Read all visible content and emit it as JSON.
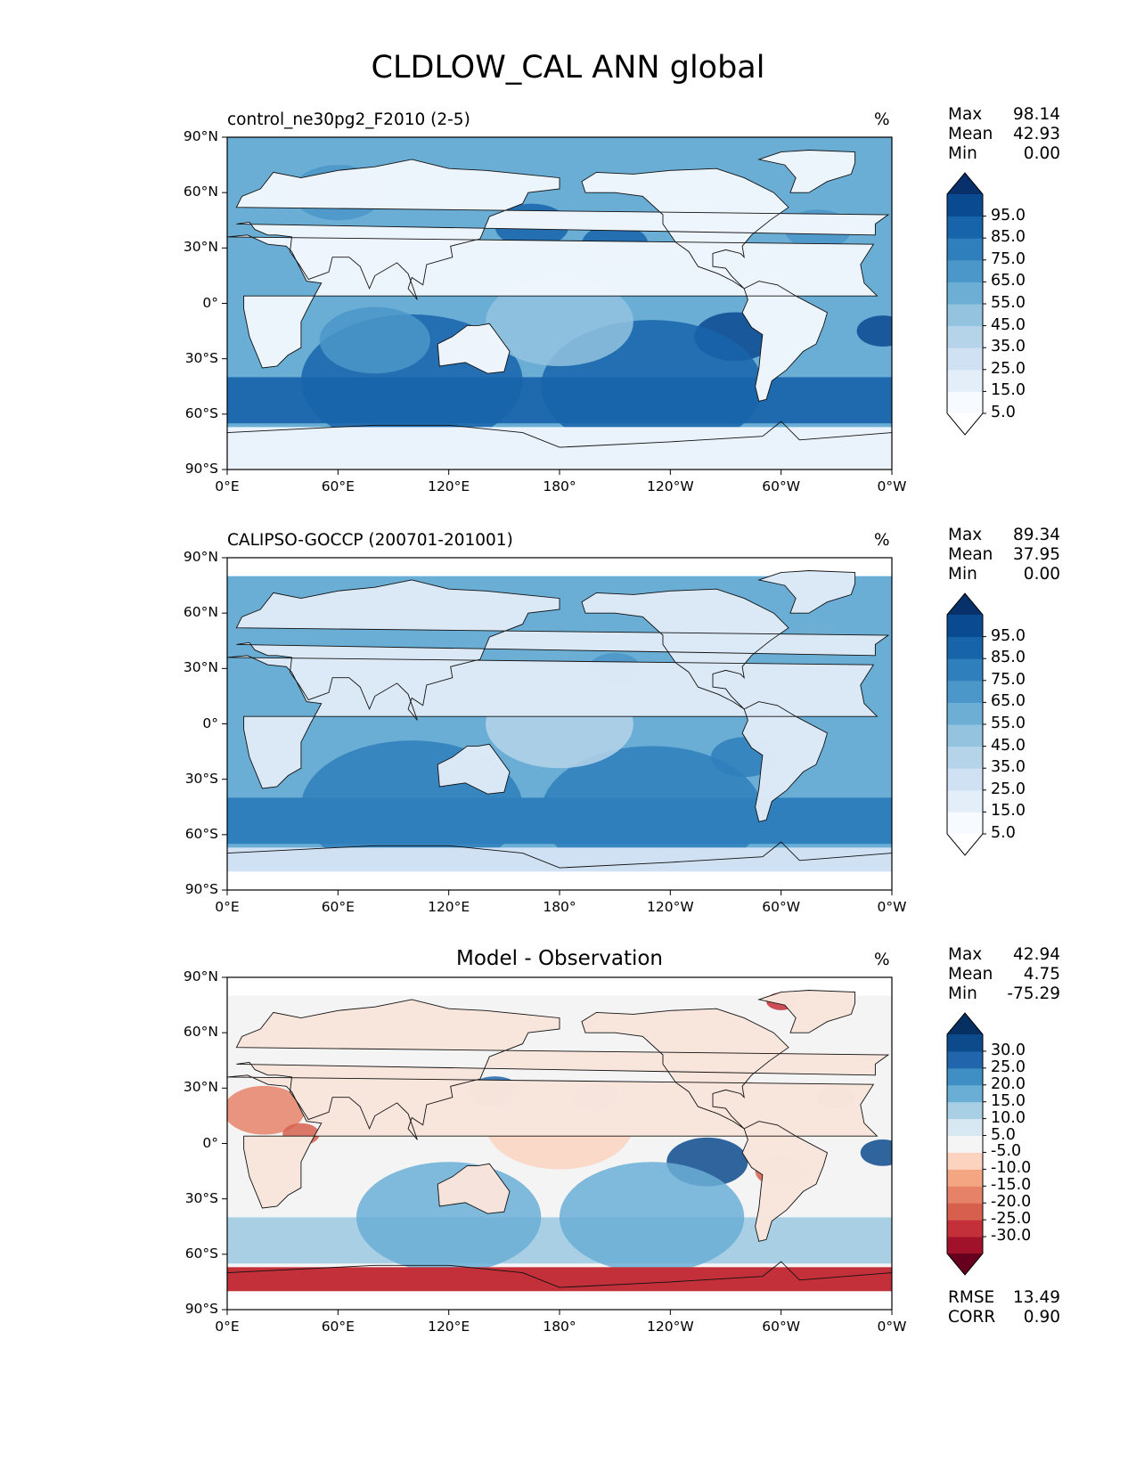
{
  "figure": {
    "title": "CLDLOW_CAL ANN global"
  },
  "axes": {
    "lat_ticks": [
      "90°N",
      "60°N",
      "30°N",
      "0°",
      "30°S",
      "60°S",
      "90°S"
    ],
    "lon_ticks": [
      "0°E",
      "60°E",
      "120°E",
      "180°",
      "120°W",
      "60°W",
      "0°W"
    ]
  },
  "panels": [
    {
      "id": "model",
      "title_left": "control_ne30pg2_F2010 (2-5)",
      "title_center": "",
      "units": "%",
      "stats": [
        {
          "label": "Max",
          "value": "98.14"
        },
        {
          "label": "Mean",
          "value": "42.93"
        },
        {
          "label": "Min",
          "value": "0.00"
        }
      ],
      "colorbar": {
        "labels": [
          "95.0",
          "85.0",
          "75.0",
          "65.0",
          "55.0",
          "45.0",
          "35.0",
          "25.0",
          "15.0",
          "5.0"
        ],
        "colors": [
          "#f7fbff",
          "#e3eef9",
          "#cfe1f2",
          "#b5d4e9",
          "#93c3df",
          "#6daed5",
          "#4b97c9",
          "#2f7fbc",
          "#1864aa",
          "#0a4a90"
        ],
        "over_color": "#08306b",
        "under_color": "#ffffff"
      },
      "rmse": null
    },
    {
      "id": "obs",
      "title_left": "CALIPSO-GOCCP (200701-201001)",
      "title_center": "",
      "units": "%",
      "stats": [
        {
          "label": "Max",
          "value": "89.34"
        },
        {
          "label": "Mean",
          "value": "37.95"
        },
        {
          "label": "Min",
          "value": "0.00"
        }
      ],
      "colorbar": {
        "labels": [
          "95.0",
          "85.0",
          "75.0",
          "65.0",
          "55.0",
          "45.0",
          "35.0",
          "25.0",
          "15.0",
          "5.0"
        ],
        "colors": [
          "#f7fbff",
          "#e3eef9",
          "#cfe1f2",
          "#b5d4e9",
          "#93c3df",
          "#6daed5",
          "#4b97c9",
          "#2f7fbc",
          "#1864aa",
          "#0a4a90"
        ],
        "over_color": "#08306b",
        "under_color": "#ffffff"
      },
      "rmse": null
    },
    {
      "id": "diff",
      "title_left": "",
      "title_center": "Model - Observation",
      "units": "%",
      "stats": [
        {
          "label": "Max",
          "value": "42.94"
        },
        {
          "label": "Mean",
          "value": "4.75"
        },
        {
          "label": "Min",
          "value": "-75.29"
        }
      ],
      "colorbar": {
        "labels": [
          "30.0",
          "25.0",
          "20.0",
          "15.0",
          "10.0",
          "5.0",
          "-5.0",
          "-10.0",
          "-15.0",
          "-20.0",
          "-25.0",
          "-30.0"
        ],
        "colors": [
          "#a0122a",
          "#c3303a",
          "#d6604d",
          "#e58268",
          "#f4a582",
          "#fbd3bf",
          "#f5f5f5",
          "#d7e8f2",
          "#a9cfe5",
          "#6aaed6",
          "#3f8fc4",
          "#2166ac",
          "#0d4a8c"
        ],
        "over_color": "#053061",
        "under_color": "#67001f"
      },
      "rmse": [
        {
          "label": "RMSE",
          "value": "13.49"
        },
        {
          "label": "CORR",
          "value": "0.90"
        }
      ]
    }
  ],
  "map_colors": {
    "ocean_mid": "#6aaed6",
    "ocean_deep": "#1f6aae",
    "land_light": "#eef5fc",
    "diff_neutral": "#f4f4f4",
    "diff_pos": "#2f7fbc",
    "diff_neg": "#e08268"
  }
}
